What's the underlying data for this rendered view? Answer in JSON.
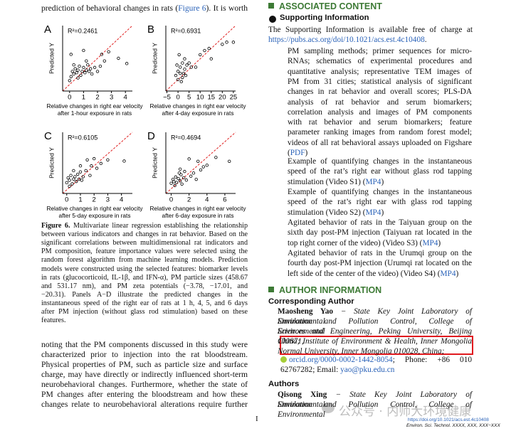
{
  "left_top": {
    "lines": [
      [
        "prediction of behavioral changes in rats (",
        {
          "link": "Figure 6"
        },
        "). It is worth"
      ]
    ]
  },
  "figure": {
    "panels": [
      {
        "letter": "A",
        "r2": "R²=0.2461",
        "y_label": "Predicted Y",
        "x_label": [
          "Relative changes in right ear velocity",
          "after 1-hour exposure in rats"
        ],
        "xlim": [
          -0.5,
          4.5
        ],
        "ylim": [
          -0.5,
          4.5
        ],
        "xticks": [
          0,
          1,
          2,
          3,
          4
        ],
        "x": [
          0.1,
          0.2,
          0.3,
          0.4,
          0.5,
          0.6,
          0.7,
          0.8,
          0.9,
          1.0,
          1.1,
          1.2,
          1.3,
          1.4,
          1.5,
          1.6,
          1.8,
          2.0,
          2.2,
          2.5,
          2.3,
          2.8,
          3.5,
          4.1,
          0.1,
          1.0,
          0.0,
          0.3,
          0.6,
          1.2
        ],
        "y": [
          0.6,
          1.0,
          0.8,
          1.2,
          0.9,
          1.1,
          1.4,
          0.7,
          1.0,
          1.3,
          0.9,
          1.1,
          1.5,
          1.0,
          1.2,
          0.8,
          1.3,
          1.0,
          1.4,
          1.8,
          2.3,
          2.5,
          2.0,
          1.6,
          2.3,
          2.6,
          0.3,
          1.5,
          0.5,
          1.8
        ]
      },
      {
        "letter": "B",
        "r2": "R²=0.6931",
        "y_label": "Predicted Y",
        "x_label": [
          "Relative changes in right ear velocity",
          "after 4-day exposure in rats"
        ],
        "xlim": [
          -5.5,
          26
        ],
        "ylim": [
          -5.5,
          26
        ],
        "xticks": [
          {
            "value": -5,
            "label": "−5"
          },
          0,
          5,
          10,
          15,
          20,
          25
        ],
        "x": [
          -1,
          0,
          0,
          1,
          1,
          2,
          2,
          3,
          3,
          0.5,
          4,
          5,
          1.5,
          6,
          8,
          10,
          12,
          14,
          15,
          20,
          22,
          25,
          -0.5,
          2.5,
          3.5
        ],
        "y": [
          2,
          4,
          0,
          6,
          3,
          8,
          1,
          5,
          10,
          12,
          7,
          8,
          -1,
          6,
          6,
          12,
          14,
          15,
          10,
          17,
          18,
          18,
          7,
          3,
          2
        ]
      },
      {
        "letter": "C",
        "r2": "R²=0.6105",
        "y_label": "Predicted Y",
        "x_label": [
          "Relative changes in right ear velocity",
          "after 5-day exposure in rats"
        ],
        "xlim": [
          -0.3,
          4.8
        ],
        "ylim": [
          -0.3,
          4.8
        ],
        "xticks": [
          0,
          1,
          2,
          3,
          4
        ],
        "x": [
          0,
          0.1,
          0.2,
          0.3,
          0.4,
          0.5,
          0.6,
          0.7,
          0.8,
          0.9,
          1.0,
          1.1,
          1.2,
          1.4,
          1.5,
          1.8,
          2.0,
          2.2,
          2.5,
          3.0,
          4.2,
          0.2,
          1.0,
          1.7,
          0.5
        ],
        "y": [
          0.6,
          1.0,
          0.8,
          1.2,
          0.5,
          0.9,
          1.1,
          0.7,
          1.3,
          0.9,
          1.5,
          0.8,
          1.1,
          1.6,
          2.5,
          2.0,
          2.6,
          1.8,
          2.2,
          2.5,
          2.4,
          0.3,
          2.0,
          1.2,
          1.6
        ]
      },
      {
        "letter": "D",
        "r2": "R²=0.4694",
        "y_label": "Predicted Y",
        "x_label": [
          "Relative changes in right ear velocity",
          "after 6-day exposure in rats"
        ],
        "xlim": [
          -0.6,
          7.2
        ],
        "ylim": [
          -0.6,
          7.2
        ],
        "xticks": [
          0,
          2,
          4,
          6
        ],
        "x": [
          0,
          0.2,
          0.3,
          0.5,
          0.6,
          0.8,
          1.0,
          1.1,
          1.2,
          1.4,
          1.5,
          1.7,
          2.0,
          2.2,
          2.5,
          3.0,
          3.3,
          4.0,
          5.0,
          6.5,
          1.0,
          0.4,
          2.8,
          3.6,
          0.9
        ],
        "y": [
          0.7,
          1.2,
          0.9,
          1.5,
          0.8,
          1.3,
          1.0,
          1.8,
          0.6,
          1.4,
          2.2,
          1.1,
          3.8,
          1.6,
          2.0,
          3.5,
          2.4,
          3.0,
          4.0,
          3.5,
          2.5,
          0.4,
          1.2,
          2.8,
          2.0
        ]
      }
    ]
  },
  "caption": {
    "lines": [
      [
        {
          "bold": "Figure 6."
        },
        " Multivariate linear regression establishing the relationship"
      ],
      [
        "between various indicators and changes in rat behavior. Based on the"
      ],
      [
        "significant correlations between multidimensional rat indicators and"
      ],
      [
        "PM composition, feature importance values were selected using the"
      ],
      [
        "random forest algorithm from machine learning models. Prediction"
      ],
      [
        "models were constructed using the selected features: biomarker levels"
      ],
      [
        "in rats (glucocorticoid, IL-1β, and IFN-α), PM particle sizes (458.67"
      ],
      [
        "and 531.17 nm), and PM zeta potentials (−3.78, −17.01, and"
      ],
      [
        "−20.31). Panels A−D illustrate the predicted changes in the"
      ],
      [
        "instantaneous speed of the right ear of rats at 1 h, 4, 5, and 6 days"
      ],
      [
        "after PM injection (without glass rod stimulation) based on these"
      ],
      [
        "features."
      ]
    ]
  },
  "body": {
    "lines": [
      [
        "noting that the PM components discussed in this study were"
      ],
      [
        "characterized prior to injection into the rat bloodstream."
      ],
      [
        "Physical properties of PM, such as particle size and surface"
      ],
      [
        "charge, may have directly or indirectly influenced short-term"
      ],
      [
        "neurobehavioral changes. Furthermore, whether the state of"
      ],
      [
        "PM changes after entering the bloodstream and how these"
      ],
      [
        "changes relate to neurobehavioral alterations require further"
      ]
    ]
  },
  "associated_content": {
    "heading": "ASSOCIATED CONTENT",
    "supporting_information": {
      "heading": "Supporting Information",
      "intro": [
        [
          "The Supporting Information is available free of charge at"
        ],
        [
          {
            "link": "https://pubs.acs.org/doi/10.1021/acs.est.4c10408"
          },
          "."
        ]
      ],
      "items": [
        {
          "lines": [
            [
              "PM sampling methods; primer sequences for micro-"
            ],
            [
              "RNAs; schematics of experimental procedures and"
            ],
            [
              "quantitative analysis; representative TEM images of"
            ],
            [
              "PM from 31 cities; statistical analysis of significant"
            ],
            [
              "changes in rat behavior and overall scores; PLS-DA"
            ],
            [
              "analysis of rat behavior and serum biomarkers;"
            ],
            [
              "correlation analysis and images of PM components"
            ],
            [
              "with rat behavior and serum biomarkers; feature"
            ],
            [
              "parameter ranking images from random forest model;"
            ],
            [
              "videos of all rat behavioral assays uploaded on Figshare"
            ],
            [
              "(",
              {
                "link": "PDF"
              },
              ")"
            ]
          ]
        },
        {
          "lines": [
            [
              "Example of quantifying changes in the instantaneous"
            ],
            [
              "speed of the rat’s right ear without glass rod tapping"
            ],
            [
              "stimulation (Video S1) (",
              {
                "link": "MP4"
              },
              ")"
            ]
          ]
        },
        {
          "lines": [
            [
              "Example of quantifying changes in the instantaneous"
            ],
            [
              "speed of the rat’s right ear with glass rod tapping"
            ],
            [
              "stimulation (Video S2) (",
              {
                "link": "MP4"
              },
              ")"
            ]
          ]
        },
        {
          "lines": [
            [
              "Agitated behavior of rats in the Taiyuan group on the"
            ],
            [
              "sixth day post-PM injection (Taiyuan rat located in the"
            ],
            [
              "top right corner of the video) (Video S3) (",
              {
                "link": "MP4"
              },
              ")"
            ]
          ]
        },
        {
          "lines": [
            [
              "Agitated behavior of rats in the Urumqi group on the"
            ],
            [
              "fourth day post-PM injection (Urumqi rat located on the"
            ],
            [
              "left side of the center of the video) (Video S4) (",
              {
                "link": "MP4"
              },
              ")"
            ]
          ]
        }
      ]
    }
  },
  "author_information": {
    "heading": "AUTHOR INFORMATION",
    "corresponding_heading": "Corresponding Author",
    "corresponding": [
      [
        {
          "bold": "Maosheng Yao"
        },
        " − State Key Joint Laboratory of Environmental"
      ],
      [
        "Simulation and Pollution Control, College of Environmental"
      ],
      [
        "Sciences and Engineering, Peking University, Beijing 100871,"
      ],
      [
        "China; Institute of Environment & Health, Inner Mongolia"
      ],
      [
        "Normal University, Inner Mongolia 010028, China;"
      ]
    ],
    "contact": [
      [
        {
          "link": "orcid.org/0000-0002-1442-8054"
        },
        "; Phone: +86 010"
      ],
      [
        "62767282; Email: ",
        {
          "link": "yao@pku.edu.cn"
        }
      ]
    ],
    "authors_heading": "Authors",
    "authors": [
      [
        {
          "bold": "Qisong Xing"
        },
        " − State Key Joint Laboratory of Environmental"
      ],
      [
        "Simulation and Pollution Control, College of Environmental"
      ]
    ]
  },
  "footer": {
    "page": "I",
    "doi": "https://doi.org/10.1021/acs.est.4c10408",
    "journal": "Environ. Sci. Technol. XXXX, XXX, XXX−XXX"
  },
  "watermark": "公众号 · 内师大环境健康"
}
